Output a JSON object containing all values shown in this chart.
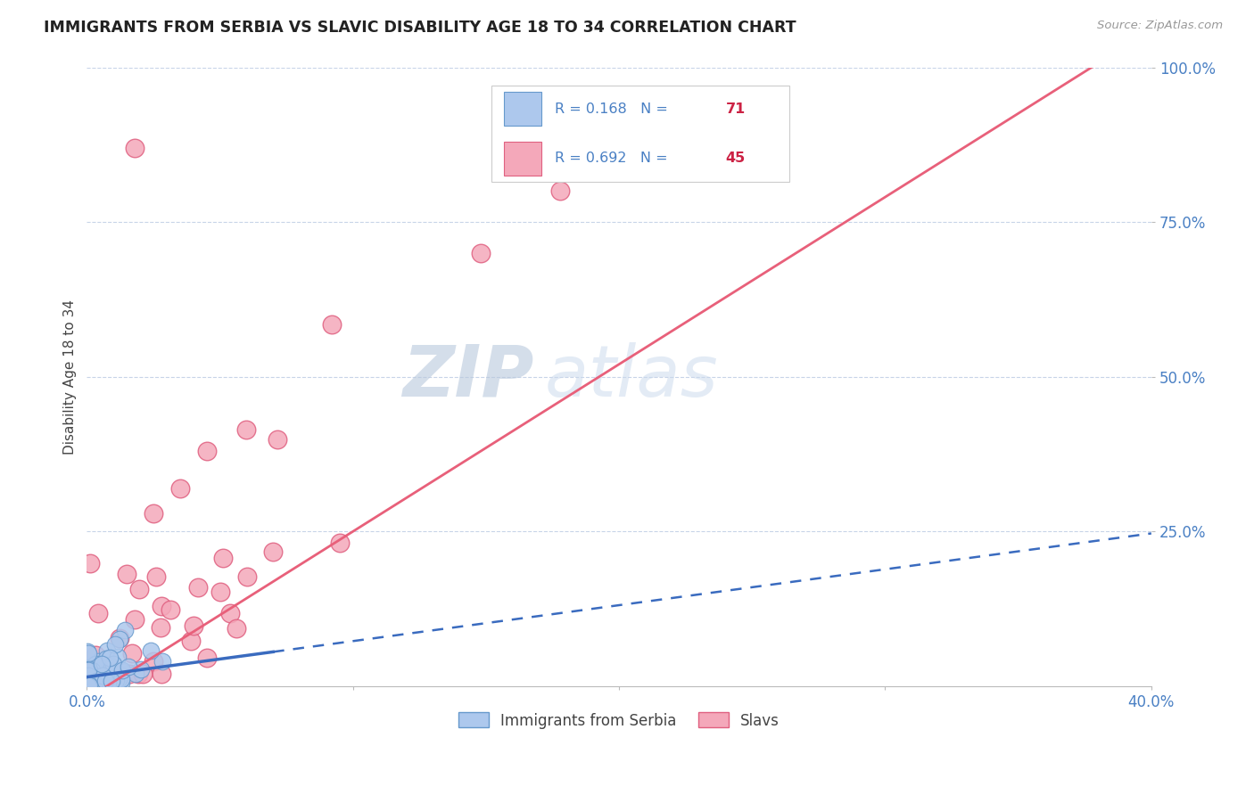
{
  "title": "IMMIGRANTS FROM SERBIA VS SLAVIC DISABILITY AGE 18 TO 34 CORRELATION CHART",
  "source_text": "Source: ZipAtlas.com",
  "ylabel_label": "Disability Age 18 to 34",
  "watermark_zip": "ZIP",
  "watermark_atlas": "atlas",
  "legend_entry1": "R = 0.168   N = 71",
  "legend_entry2": "R = 0.692   N = 45",
  "legend_label1": "Immigrants from Serbia",
  "legend_label2": "Slavs",
  "serbia_color": "#adc8ed",
  "slavs_color": "#f4a8ba",
  "serbia_edge_color": "#6699cc",
  "slavs_edge_color": "#e06080",
  "blue_line_color": "#3a6bbf",
  "pink_line_color": "#e8607a",
  "background_color": "#ffffff",
  "grid_color": "#c8d4e8",
  "title_color": "#222222",
  "axis_label_color": "#4a80c4",
  "r_value_color": "#4a80c4",
  "n_value_color": "#cc2244",
  "xlim": [
    0.0,
    0.4
  ],
  "ylim": [
    0.0,
    1.0
  ],
  "serbia_R": 0.168,
  "slavs_R": 0.692,
  "serbia_N": 71,
  "slavs_N": 45
}
